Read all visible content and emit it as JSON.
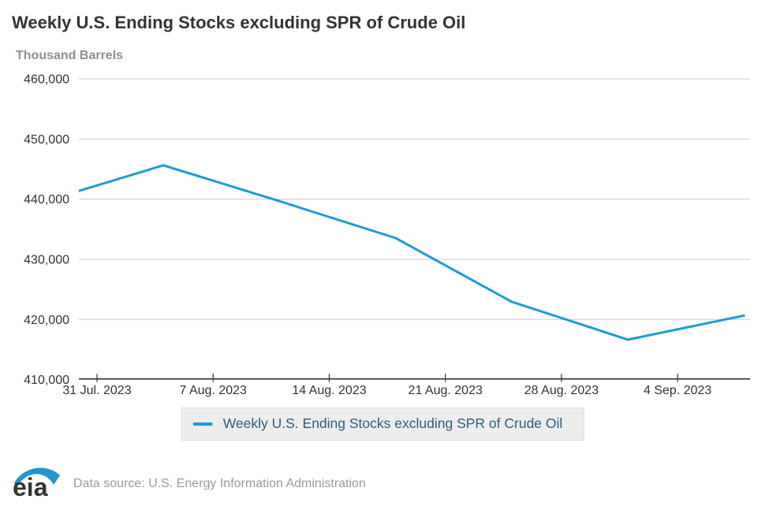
{
  "header": {
    "title": "Weekly U.S. Ending Stocks excluding SPR of Crude Oil",
    "unit_label": "Thousand Barrels"
  },
  "chart_data": {
    "type": "line",
    "title": "Weekly U.S. Ending Stocks excluding SPR of Crude Oil",
    "ylabel": "Thousand Barrels",
    "xlabel": "",
    "grid": true,
    "legend_position": "bottom-center",
    "y_axis": {
      "range": [
        410000,
        460000
      ],
      "tick_values": [
        460000,
        450000,
        440000,
        430000,
        420000,
        410000
      ],
      "tick_labels": [
        "460,000",
        "450,000",
        "440,000",
        "430,000",
        "420,000",
        "410,000"
      ]
    },
    "x_axis": {
      "range_days": [
        -1.094,
        39.366
      ],
      "tick_days": [
        0,
        7,
        14,
        21,
        28,
        35
      ],
      "tick_labels": [
        "31 Jul. 2023",
        "7 Aug. 2023",
        "14 Aug. 2023",
        "21 Aug. 2023",
        "28 Aug. 2023",
        "4 Sep. 2023"
      ]
    },
    "series": [
      {
        "name": "Weekly U.S. Ending Stocks excluding SPR of Crude Oil",
        "color": "#1d9bd7",
        "points": [
          {
            "date": "28 Jul. 2023",
            "day": -3,
            "value": 439773
          },
          {
            "date": "4 Aug. 2023",
            "day": 4,
            "value": 445622
          },
          {
            "date": "11 Aug. 2023",
            "day": 11,
            "value": 439662
          },
          {
            "date": "18 Aug. 2023",
            "day": 18,
            "value": 433534
          },
          {
            "date": "25 Aug. 2023",
            "day": 25,
            "value": 422944
          },
          {
            "date": "1 Sep. 2023",
            "day": 32,
            "value": 416637
          },
          {
            "date": "8 Sep. 2023",
            "day": 39,
            "value": 420638
          }
        ]
      }
    ]
  },
  "legend": {
    "items": [
      {
        "label": "Weekly U.S. Ending Stocks excluding SPR of Crude Oil",
        "swatch_color": "#1d9bd7"
      }
    ]
  },
  "footer": {
    "logo_text": "eia",
    "source_text": "Data source: U.S. Energy Information Administration"
  },
  "colors": {
    "line": "#1d9bd7",
    "grid": "#cccccc",
    "axis": "#333333",
    "tick_label": "#333333",
    "title": "#333333",
    "muted": "#8f8f8f",
    "legend_bg": "#ededed",
    "legend_border": "#dcdcdc",
    "legend_text": "#2b5d7d",
    "logo_blue": "#2096d3",
    "logo_text": "#333333"
  }
}
